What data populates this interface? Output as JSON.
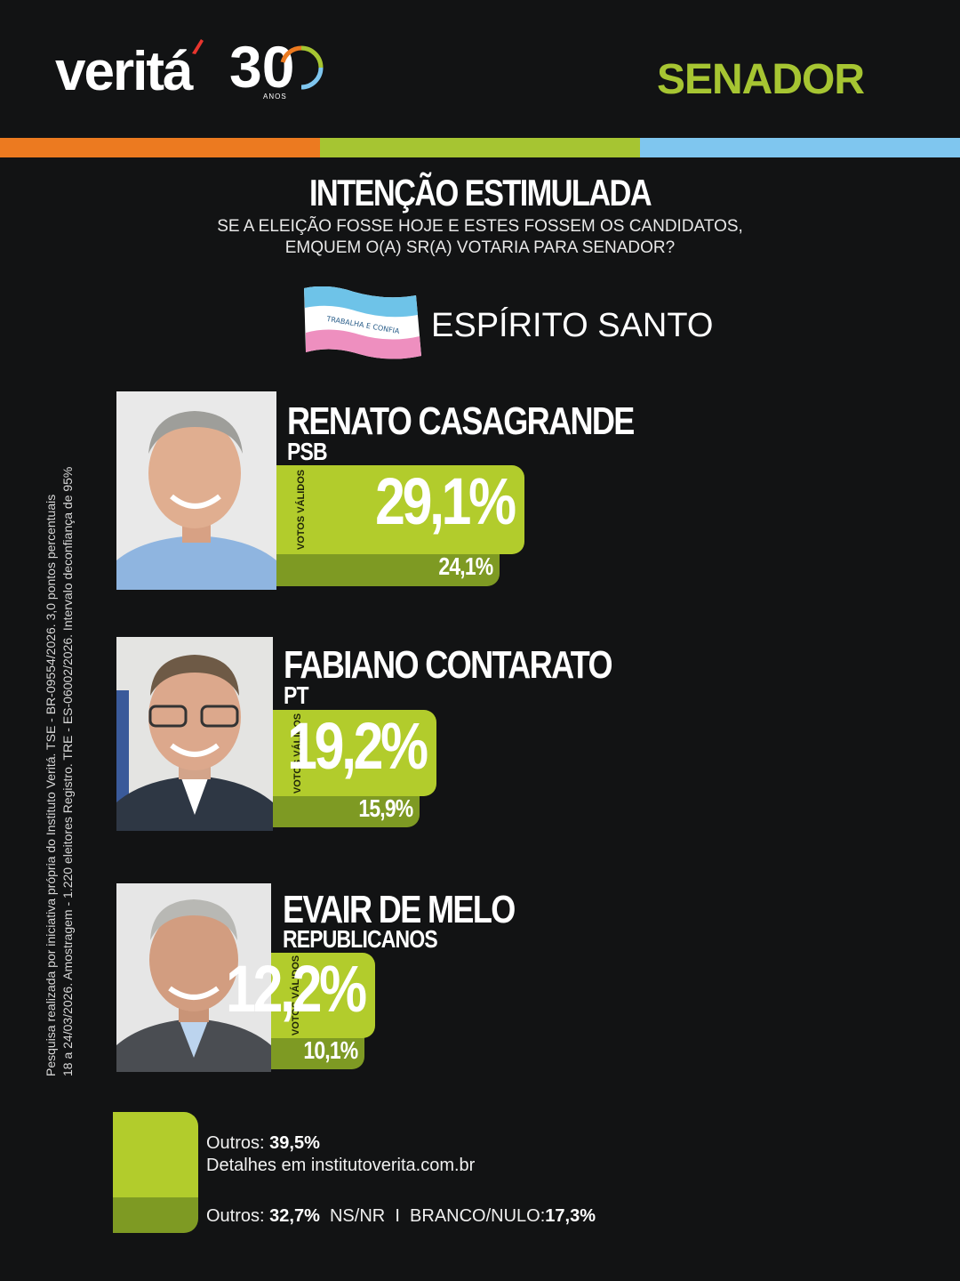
{
  "header": {
    "logo_word": "veritá",
    "logo_number": "30",
    "logo_anos": "ANOS",
    "section_title": "SENADOR",
    "stripe_colors": [
      "#ec7a20",
      "#a6c532",
      "#7fc6ef"
    ]
  },
  "question": {
    "title": "INTENÇÃO ESTIMULADA",
    "line1": "SE A ELEIÇÃO FOSSE HOJE E ESTES FOSSEM OS CANDIDATOS,",
    "line2": "EMQUEM O(A) SR(A) VOTARIA PARA SENADOR?"
  },
  "state": {
    "name": "ESPÍRITO SANTO",
    "flag_text": "TRABALHA E CONFIA"
  },
  "votos_label": "VOTOS VÁLIDOS",
  "colors": {
    "background": "#121314",
    "valid_bar": "#b2cc2c",
    "total_bar": "#7e9a23",
    "accent_green": "#a6c532"
  },
  "chart_data": {
    "type": "bar",
    "categories": [
      "RENATO CASAGRANDE",
      "FABIANO CONTARATO",
      "EVAIR DE MELO"
    ],
    "parties": [
      "PSB",
      "PT",
      "REPUBLICANOS"
    ],
    "series": [
      {
        "name": "VOTOS VÁLIDOS",
        "values": [
          29.1,
          19.2,
          12.2
        ],
        "labels": [
          "29,1%",
          "19,2%",
          "12,2%"
        ]
      },
      {
        "values": [
          24.1,
          15.9,
          10.1
        ],
        "labels": [
          "24,1%",
          "15,9%",
          "10,1%"
        ]
      }
    ]
  },
  "legend": {
    "outros_label": "Outros:",
    "outros_valid": "39,5%",
    "details": "Detalhes em institutoverita.com.br",
    "outros_total": "32,7%",
    "nsnr_label": "NS/NR",
    "separator": "I",
    "branco_label": "BRANCO/NULO:",
    "branco_value": "17,3%"
  },
  "disclaimer": {
    "line1": "Pesquisa realizada por iniciativa própria do Instituto Veritá. TSE - BR-09554/2026. 3,0 pontos percentuais",
    "line2": "18 a 24/03/2026. Amostragem - 1.220 eleitores Registro. TRE - ES-06002/2026. Intervalo deconfiança de 95%"
  }
}
